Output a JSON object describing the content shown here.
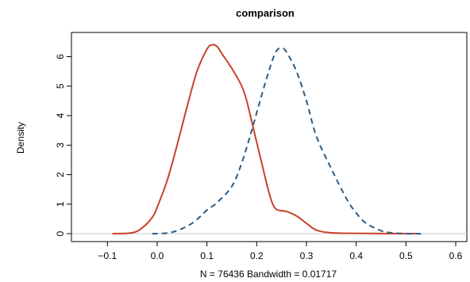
{
  "chart_data": {
    "type": "line",
    "title": "comparison",
    "xlabel": "N = 76436   Bandwidth = 0.01717",
    "ylabel": "Density",
    "xlim": [
      -0.15,
      0.6
    ],
    "ylim": [
      0,
      6.55
    ],
    "xticks": [
      -0.1,
      0.0,
      0.1,
      0.2,
      0.3,
      0.4,
      0.5,
      0.6
    ],
    "xtick_labels": [
      "−0.1",
      "0.0",
      "0.1",
      "0.2",
      "0.3",
      "0.4",
      "0.5",
      "0.6"
    ],
    "yticks": [
      0,
      1,
      2,
      3,
      4,
      5,
      6
    ],
    "ytick_labels": [
      "0",
      "1",
      "2",
      "3",
      "4",
      "5",
      "6"
    ],
    "grid": false,
    "baseline_y": 0,
    "series": [
      {
        "color": "#c8412b",
        "style": "solid",
        "x": [
          -0.09,
          -0.05,
          -0.03,
          -0.01,
          0.0,
          0.02,
          0.04,
          0.06,
          0.08,
          0.1,
          0.11,
          0.12,
          0.13,
          0.15,
          0.17,
          0.18,
          0.19,
          0.2,
          0.21,
          0.22,
          0.23,
          0.24,
          0.26,
          0.28,
          0.3,
          0.32,
          0.35,
          0.4,
          0.53
        ],
        "values": [
          0.0,
          0.03,
          0.2,
          0.55,
          0.9,
          1.8,
          3.0,
          4.3,
          5.5,
          6.25,
          6.4,
          6.35,
          6.1,
          5.6,
          5.0,
          4.5,
          3.8,
          3.1,
          2.4,
          1.7,
          1.1,
          0.82,
          0.75,
          0.6,
          0.35,
          0.12,
          0.03,
          0.01,
          0.0
        ]
      },
      {
        "color": "#2d5b82",
        "style": "dashed",
        "x": [
          -0.01,
          0.03,
          0.07,
          0.1,
          0.12,
          0.15,
          0.17,
          0.19,
          0.21,
          0.23,
          0.24,
          0.25,
          0.26,
          0.28,
          0.3,
          0.32,
          0.35,
          0.38,
          0.4,
          0.42,
          0.45,
          0.47,
          0.5,
          0.53
        ],
        "values": [
          0.0,
          0.05,
          0.35,
          0.8,
          1.05,
          1.6,
          2.4,
          3.5,
          4.7,
          5.8,
          6.2,
          6.3,
          6.15,
          5.5,
          4.5,
          3.3,
          2.2,
          1.2,
          0.7,
          0.35,
          0.1,
          0.03,
          0.0,
          0.0
        ]
      }
    ]
  }
}
